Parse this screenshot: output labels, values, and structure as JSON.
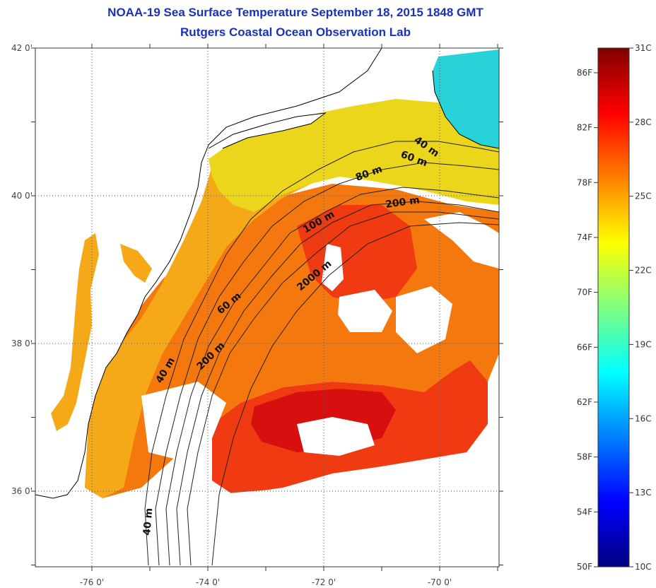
{
  "title": {
    "line1": "NOAA-19 Sea Surface Temperature September 18, 2015 1848 GMT",
    "line2": "Rutgers Coastal Ocean Observation Lab"
  },
  "map": {
    "lon_ticks": [
      {
        "value": -76,
        "label": "-76 0'"
      },
      {
        "value": -74,
        "label": "-74 0'"
      },
      {
        "value": -72,
        "label": "-72 0'"
      },
      {
        "value": -70,
        "label": "-70 0'"
      }
    ],
    "lat_ticks": [
      {
        "value": 42,
        "label": "42 0'"
      },
      {
        "value": 40,
        "label": "40 0'"
      },
      {
        "value": 38,
        "label": "38 0'"
      },
      {
        "value": 36,
        "label": "36 0'"
      }
    ],
    "contour_labels": [
      "40 m",
      "60 m",
      "80 m",
      "200 m",
      "100 m",
      "2000 m",
      "60 m",
      "200 m",
      "40 m",
      "40 m"
    ],
    "grid": "dotted"
  },
  "colorbar": {
    "fahrenheit_labels": [
      "86F",
      "82F",
      "78F",
      "74F",
      "70F",
      "66F",
      "62F",
      "58F",
      "54F",
      "50F"
    ],
    "celsius_labels": [
      "31C",
      "28C",
      "25C",
      "22C",
      "19C",
      "16C",
      "13C",
      "10C"
    ],
    "min_c": 10,
    "max_c": 31,
    "colors": [
      "#00007f",
      "#0000ff",
      "#007fff",
      "#00ffff",
      "#7fff7f",
      "#ffff00",
      "#ff7f00",
      "#ff0000",
      "#7f0000"
    ]
  },
  "colors": {
    "title": "#1a32b8",
    "land": "#ffffff",
    "cloud": "#ffffff",
    "coast_outline": "#000000",
    "warm_core": "#d80f0f",
    "gulf_stream": "#ef3a12",
    "slope_sea": "#f5780f",
    "shelf": "#f6a918",
    "north_shelf": "#ecd61c",
    "cold_gom": "#27d3d8"
  }
}
